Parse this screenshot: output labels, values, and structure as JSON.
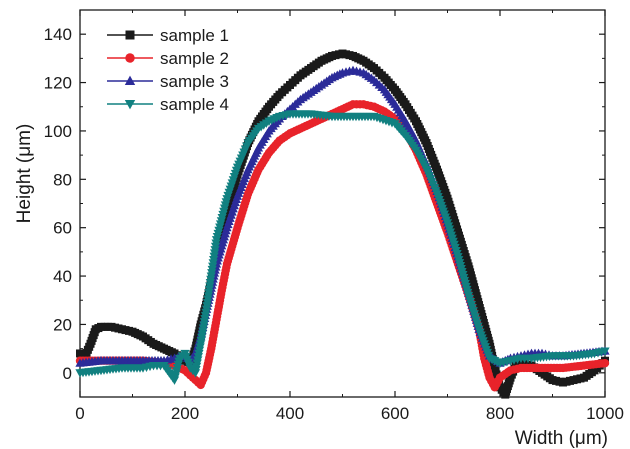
{
  "chart_data": {
    "type": "scatter",
    "title": "",
    "xlabel": "Width (μm)",
    "ylabel": "Height (μm)",
    "xlim": [
      0,
      1000
    ],
    "ylim": [
      -10,
      150
    ],
    "xticks": [
      "0",
      "200",
      "400",
      "600",
      "800",
      "1000"
    ],
    "yticks": [
      "0",
      "20",
      "40",
      "60",
      "80",
      "100",
      "120",
      "140"
    ],
    "grid": false,
    "legend_position": "top-left",
    "series": [
      {
        "name": "sample 1",
        "marker": "square",
        "color": "#1a1a1a",
        "points": [
          [
            0,
            8
          ],
          [
            10,
            7
          ],
          [
            20,
            12
          ],
          [
            30,
            18
          ],
          [
            40,
            19
          ],
          [
            60,
            19
          ],
          [
            80,
            18
          ],
          [
            100,
            17
          ],
          [
            120,
            15
          ],
          [
            140,
            12
          ],
          [
            160,
            10
          ],
          [
            180,
            8
          ],
          [
            200,
            5
          ],
          [
            210,
            4
          ],
          [
            220,
            10
          ],
          [
            230,
            20
          ],
          [
            240,
            28
          ],
          [
            250,
            38
          ],
          [
            260,
            48
          ],
          [
            270,
            58
          ],
          [
            280,
            66
          ],
          [
            290,
            74
          ],
          [
            300,
            82
          ],
          [
            320,
            95
          ],
          [
            340,
            104
          ],
          [
            360,
            110
          ],
          [
            380,
            115
          ],
          [
            400,
            119
          ],
          [
            420,
            123
          ],
          [
            440,
            126
          ],
          [
            460,
            129
          ],
          [
            480,
            131
          ],
          [
            500,
            132
          ],
          [
            520,
            131
          ],
          [
            540,
            129
          ],
          [
            560,
            126
          ],
          [
            580,
            122
          ],
          [
            600,
            117
          ],
          [
            620,
            111
          ],
          [
            640,
            104
          ],
          [
            660,
            95
          ],
          [
            680,
            84
          ],
          [
            700,
            72
          ],
          [
            720,
            58
          ],
          [
            740,
            44
          ],
          [
            760,
            28
          ],
          [
            780,
            12
          ],
          [
            790,
            2
          ],
          [
            800,
            -6
          ],
          [
            810,
            -9
          ],
          [
            820,
            -2
          ],
          [
            830,
            3
          ],
          [
            840,
            4
          ],
          [
            860,
            3
          ],
          [
            880,
            0
          ],
          [
            900,
            -3
          ],
          [
            920,
            -4
          ],
          [
            940,
            -3
          ],
          [
            960,
            -2
          ],
          [
            980,
            1
          ],
          [
            1000,
            5
          ]
        ]
      },
      {
        "name": "sample 2",
        "marker": "circle",
        "color": "#e8232a",
        "points": [
          [
            0,
            5
          ],
          [
            40,
            5
          ],
          [
            80,
            5
          ],
          [
            120,
            5
          ],
          [
            160,
            4
          ],
          [
            180,
            3
          ],
          [
            200,
            1
          ],
          [
            220,
            -3
          ],
          [
            230,
            -5
          ],
          [
            240,
            0
          ],
          [
            250,
            10
          ],
          [
            260,
            22
          ],
          [
            270,
            34
          ],
          [
            280,
            45
          ],
          [
            300,
            60
          ],
          [
            320,
            74
          ],
          [
            340,
            84
          ],
          [
            360,
            91
          ],
          [
            380,
            96
          ],
          [
            400,
            99
          ],
          [
            420,
            101
          ],
          [
            440,
            103
          ],
          [
            460,
            105
          ],
          [
            480,
            107
          ],
          [
            500,
            109
          ],
          [
            520,
            111
          ],
          [
            540,
            111
          ],
          [
            560,
            110
          ],
          [
            580,
            108
          ],
          [
            600,
            105
          ],
          [
            620,
            100
          ],
          [
            640,
            92
          ],
          [
            660,
            82
          ],
          [
            680,
            70
          ],
          [
            700,
            58
          ],
          [
            720,
            45
          ],
          [
            740,
            32
          ],
          [
            760,
            18
          ],
          [
            770,
            6
          ],
          [
            780,
            -2
          ],
          [
            790,
            -6
          ],
          [
            800,
            -2
          ],
          [
            820,
            1
          ],
          [
            840,
            2
          ],
          [
            880,
            2
          ],
          [
            920,
            2
          ],
          [
            960,
            3
          ],
          [
            1000,
            4
          ]
        ]
      },
      {
        "name": "sample 3",
        "marker": "triangle-up",
        "color": "#2b2b99",
        "points": [
          [
            0,
            4
          ],
          [
            40,
            5
          ],
          [
            80,
            5
          ],
          [
            120,
            5
          ],
          [
            160,
            5
          ],
          [
            180,
            6
          ],
          [
            200,
            7
          ],
          [
            210,
            5
          ],
          [
            220,
            8
          ],
          [
            230,
            15
          ],
          [
            240,
            25
          ],
          [
            250,
            35
          ],
          [
            260,
            45
          ],
          [
            280,
            60
          ],
          [
            300,
            73
          ],
          [
            320,
            84
          ],
          [
            340,
            93
          ],
          [
            360,
            100
          ],
          [
            380,
            105
          ],
          [
            400,
            109
          ],
          [
            420,
            113
          ],
          [
            440,
            116
          ],
          [
            460,
            119
          ],
          [
            480,
            122
          ],
          [
            500,
            124
          ],
          [
            520,
            125
          ],
          [
            540,
            124
          ],
          [
            560,
            121
          ],
          [
            580,
            117
          ],
          [
            600,
            111
          ],
          [
            620,
            104
          ],
          [
            640,
            96
          ],
          [
            660,
            86
          ],
          [
            680,
            75
          ],
          [
            700,
            62
          ],
          [
            720,
            48
          ],
          [
            740,
            33
          ],
          [
            760,
            18
          ],
          [
            780,
            7
          ],
          [
            800,
            4
          ],
          [
            820,
            6
          ],
          [
            840,
            7
          ],
          [
            860,
            8
          ],
          [
            880,
            8
          ],
          [
            900,
            7
          ],
          [
            920,
            7
          ],
          [
            960,
            8
          ],
          [
            1000,
            9
          ]
        ]
      },
      {
        "name": "sample 4",
        "marker": "triangle-down",
        "color": "#118080",
        "points": [
          [
            0,
            0
          ],
          [
            40,
            1
          ],
          [
            80,
            2
          ],
          [
            120,
            2
          ],
          [
            140,
            3
          ],
          [
            160,
            3
          ],
          [
            170,
            0
          ],
          [
            180,
            -3
          ],
          [
            190,
            6
          ],
          [
            200,
            8
          ],
          [
            210,
            2
          ],
          [
            220,
            0
          ],
          [
            230,
            12
          ],
          [
            240,
            25
          ],
          [
            250,
            40
          ],
          [
            260,
            55
          ],
          [
            280,
            72
          ],
          [
            300,
            85
          ],
          [
            320,
            95
          ],
          [
            340,
            101
          ],
          [
            360,
            104
          ],
          [
            380,
            106
          ],
          [
            400,
            107
          ],
          [
            440,
            107
          ],
          [
            480,
            106
          ],
          [
            520,
            106
          ],
          [
            560,
            106
          ],
          [
            600,
            103
          ],
          [
            620,
            98
          ],
          [
            640,
            92
          ],
          [
            660,
            84
          ],
          [
            680,
            74
          ],
          [
            700,
            62
          ],
          [
            720,
            48
          ],
          [
            740,
            32
          ],
          [
            760,
            18
          ],
          [
            780,
            6
          ],
          [
            800,
            4
          ],
          [
            820,
            5
          ],
          [
            840,
            6
          ],
          [
            860,
            6
          ],
          [
            900,
            7
          ],
          [
            940,
            7
          ],
          [
            980,
            8
          ],
          [
            1000,
            9
          ]
        ]
      }
    ]
  }
}
